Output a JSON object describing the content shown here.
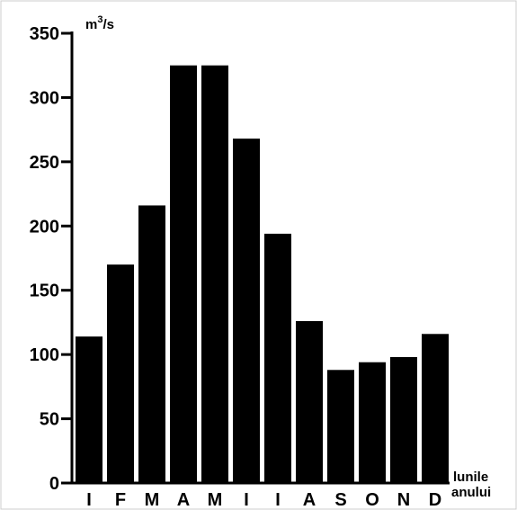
{
  "chart_data": {
    "type": "bar",
    "categories": [
      "I",
      "F",
      "M",
      "A",
      "M",
      "I",
      "I",
      "A",
      "S",
      "O",
      "N",
      "D"
    ],
    "values": [
      114,
      170,
      216,
      325,
      325,
      268,
      194,
      126,
      88,
      94,
      98,
      116
    ],
    "y_unit_base": "m",
    "y_unit_exp": "3",
    "y_unit_suffix": "/s",
    "xlabel_line1": "lunile",
    "xlabel_line2": "anului",
    "ylim": [
      0,
      350
    ],
    "yticks": [
      0,
      50,
      100,
      150,
      200,
      250,
      300,
      350
    ],
    "grid": false,
    "bar_color": "#000000"
  }
}
